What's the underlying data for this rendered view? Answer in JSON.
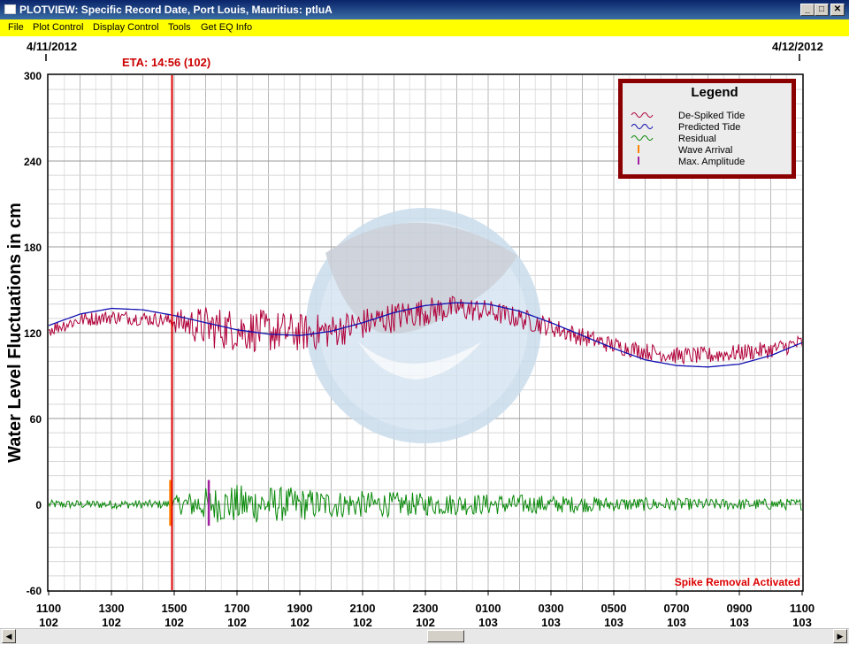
{
  "window": {
    "title": "PLOTVIEW: Specific Record Date, Port Louis, Mauritius: ptluA",
    "controls": [
      "_",
      "□",
      "✕"
    ]
  },
  "menu": [
    "File",
    "Plot Control",
    "Display Control",
    "Tools",
    "Get EQ Info"
  ],
  "dates": {
    "start": "4/11/2012",
    "end": "4/12/2012"
  },
  "eta_label": "ETA: 14:56 (102)",
  "status_text": "Spike Removal Activated",
  "chart_data": {
    "type": "line",
    "ylabel": "Water Level Fluctuations in cm",
    "ylim": [
      -60,
      300
    ],
    "yticks": [
      300,
      240,
      180,
      120,
      60,
      0,
      -60
    ],
    "xlim": [
      0,
      24
    ],
    "xticks": [
      {
        "hour": "1100",
        "day": "102",
        "x": 0
      },
      {
        "hour": "1300",
        "day": "102",
        "x": 2
      },
      {
        "hour": "1500",
        "day": "102",
        "x": 4
      },
      {
        "hour": "1700",
        "day": "102",
        "x": 6
      },
      {
        "hour": "1900",
        "day": "102",
        "x": 8
      },
      {
        "hour": "2100",
        "day": "102",
        "x": 10
      },
      {
        "hour": "2300",
        "day": "102",
        "x": 12
      },
      {
        "hour": "0100",
        "day": "103",
        "x": 14
      },
      {
        "hour": "0300",
        "day": "103",
        "x": 16
      },
      {
        "hour": "0500",
        "day": "103",
        "x": 18
      },
      {
        "hour": "0700",
        "day": "103",
        "x": 20
      },
      {
        "hour": "0900",
        "day": "103",
        "x": 22
      },
      {
        "hour": "1100",
        "day": "103",
        "x": 24
      }
    ],
    "grid": true,
    "legend": {
      "title": "Legend",
      "placement": "top-right",
      "items": [
        {
          "label": "De-Spiked Tide",
          "color": "#b0003a",
          "kind": "wave"
        },
        {
          "label": "Predicted Tide",
          "color": "#1010b0",
          "kind": "wave"
        },
        {
          "label": "Residual",
          "color": "#0a8a0a",
          "kind": "wave"
        },
        {
          "label": "Wave Arrival",
          "color": "#ff7f00",
          "kind": "tick"
        },
        {
          "label": "Max. Amplitude",
          "color": "#a020a0",
          "kind": "tick"
        }
      ]
    },
    "series": [
      {
        "name": "Predicted Tide",
        "color": "#1010b0",
        "points": [
          [
            0,
            125
          ],
          [
            1,
            133
          ],
          [
            2,
            137
          ],
          [
            3,
            136
          ],
          [
            4,
            132
          ],
          [
            5,
            127
          ],
          [
            6,
            122
          ],
          [
            7,
            119
          ],
          [
            8,
            118
          ],
          [
            9,
            121
          ],
          [
            10,
            127
          ],
          [
            11,
            134
          ],
          [
            12,
            139
          ],
          [
            13,
            141
          ],
          [
            14,
            140
          ],
          [
            15,
            135
          ],
          [
            16,
            127
          ],
          [
            17,
            118
          ],
          [
            18,
            109
          ],
          [
            19,
            101
          ],
          [
            20,
            97
          ],
          [
            21,
            96
          ],
          [
            22,
            98
          ],
          [
            23,
            104
          ],
          [
            24,
            113
          ]
        ]
      },
      {
        "name": "De-Spiked Tide",
        "color": "#b0003a",
        "points": [
          [
            0,
            122
          ],
          [
            1,
            129
          ],
          [
            2,
            131
          ],
          [
            3,
            130
          ],
          [
            4,
            128
          ],
          [
            5,
            124
          ],
          [
            6,
            122
          ],
          [
            7,
            121
          ],
          [
            8,
            120
          ],
          [
            9,
            121
          ],
          [
            10,
            126
          ],
          [
            11,
            131
          ],
          [
            12,
            135
          ],
          [
            13,
            137
          ],
          [
            14,
            135
          ],
          [
            15,
            130
          ],
          [
            16,
            124
          ],
          [
            17,
            117
          ],
          [
            18,
            111
          ],
          [
            19,
            107
          ],
          [
            20,
            104
          ],
          [
            21,
            104
          ],
          [
            22,
            106
          ],
          [
            23,
            108
          ],
          [
            24,
            113
          ]
        ],
        "noise": [
          [
            0,
            5
          ],
          [
            3.9,
            5
          ],
          [
            4,
            8
          ],
          [
            5,
            15
          ],
          [
            7,
            15
          ],
          [
            9,
            12
          ],
          [
            12,
            10
          ],
          [
            14,
            8
          ],
          [
            18,
            6
          ],
          [
            24,
            6
          ]
        ]
      },
      {
        "name": "Residual",
        "color": "#0a8a0a",
        "baseline": 0,
        "noise": [
          [
            0,
            3
          ],
          [
            3.9,
            3
          ],
          [
            4,
            6
          ],
          [
            5,
            12
          ],
          [
            6,
            14
          ],
          [
            7,
            13
          ],
          [
            9,
            10
          ],
          [
            12,
            8
          ],
          [
            15,
            7
          ],
          [
            18,
            5
          ],
          [
            21,
            4
          ],
          [
            24,
            4
          ]
        ]
      }
    ],
    "wave_arrival": {
      "x": 3.93,
      "ymin": -15,
      "ymax": 17,
      "color": "#ff7f00"
    },
    "eta_line": {
      "x": 3.93,
      "color": "#e00000"
    },
    "max_amplitude": {
      "x": 5.1,
      "ymin": -15,
      "ymax": 17,
      "color": "#a020a0"
    }
  }
}
